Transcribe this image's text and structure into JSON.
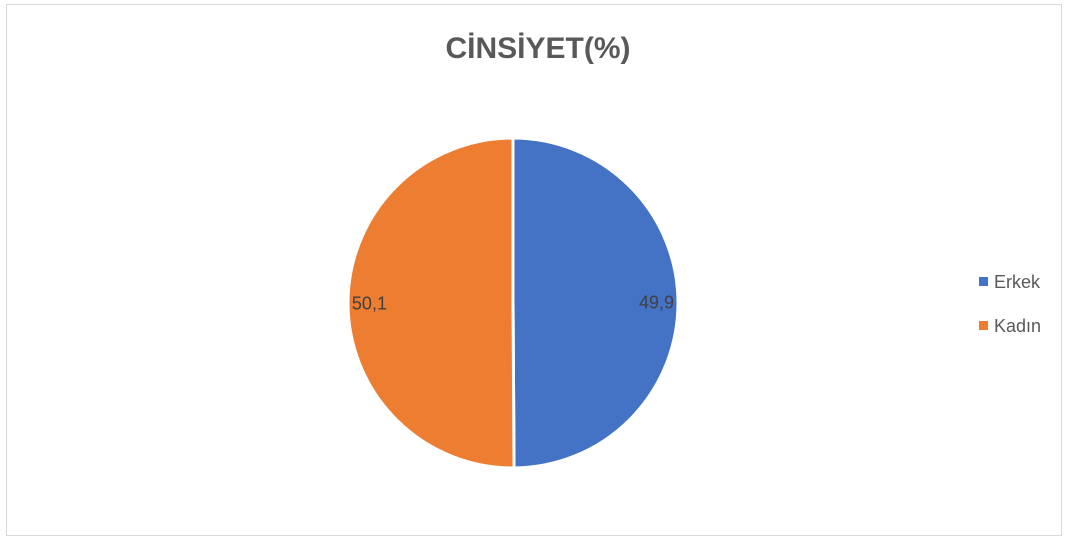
{
  "chart_data": {
    "type": "pie",
    "title": "CİNSİYET(%)",
    "categories": [
      "Erkek",
      "Kadın"
    ],
    "values": [
      49.9,
      50.1
    ],
    "data_labels": [
      "49,9",
      "50,1"
    ],
    "colors": [
      "#4472C4",
      "#ED7D31"
    ],
    "legend_position": "right",
    "start_angle": "top, clockwise"
  }
}
